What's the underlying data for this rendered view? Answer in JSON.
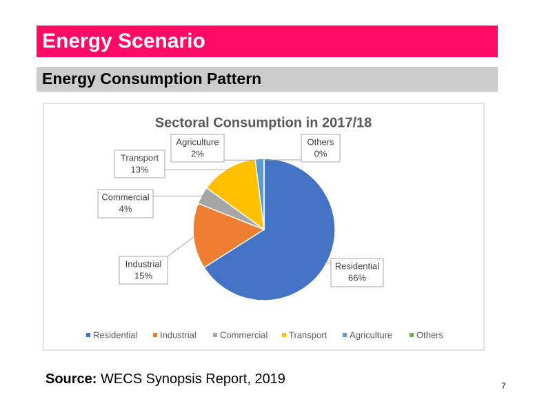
{
  "header": {
    "title": "Energy Scenario",
    "subtitle": "Energy Consumption Pattern"
  },
  "chart_data": {
    "type": "pie",
    "title": "Sectoral Consumption in 2017/18",
    "categories": [
      "Residential",
      "Industrial",
      "Commercial",
      "Transport",
      "Agriculture",
      "Others"
    ],
    "values": [
      66,
      15,
      4,
      13,
      2,
      0
    ],
    "value_labels": [
      "66%",
      "15%",
      "4%",
      "13%",
      "2%",
      "0%"
    ],
    "colors": [
      "#4472c4",
      "#ed7d31",
      "#a5a5a5",
      "#ffc000",
      "#5b9bd5",
      "#70ad47"
    ],
    "legend": "bottom"
  },
  "source": {
    "label": "Source:",
    "text": "WECS Synopsis Report, 2019"
  },
  "page_number": "7"
}
